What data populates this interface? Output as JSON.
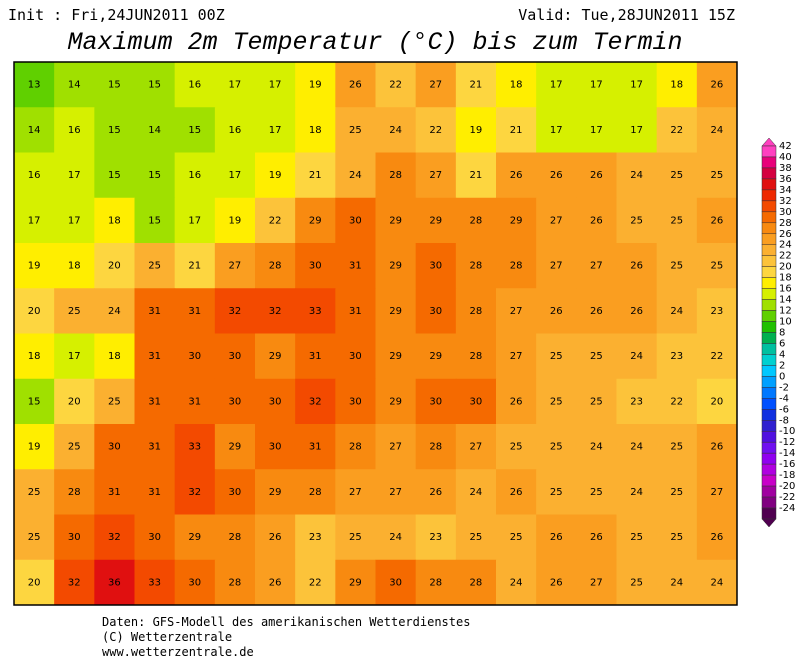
{
  "header": {
    "init": "Init : Fri,24JUN2011 00Z",
    "valid": "Valid: Tue,28JUN2011 15Z",
    "title": "Maximum 2m Temperatur (°C) bis zum Termin"
  },
  "map": {
    "values": [
      [
        13,
        14,
        15,
        15,
        16,
        17,
        17,
        19,
        26,
        22,
        27,
        21,
        18,
        17,
        17,
        17,
        18,
        26
      ],
      [
        14,
        16,
        15,
        14,
        15,
        16,
        17,
        18,
        25,
        24,
        22,
        19,
        21,
        17,
        17,
        17,
        22,
        24
      ],
      [
        16,
        17,
        15,
        15,
        16,
        17,
        19,
        21,
        24,
        28,
        27,
        21,
        26,
        26,
        26,
        24,
        25,
        25
      ],
      [
        17,
        17,
        18,
        15,
        17,
        19,
        22,
        29,
        30,
        29,
        29,
        28,
        29,
        27,
        26,
        25,
        25,
        26
      ],
      [
        19,
        18,
        20,
        25,
        21,
        27,
        28,
        30,
        31,
        29,
        30,
        28,
        28,
        27,
        27,
        26,
        25,
        25
      ],
      [
        20,
        25,
        24,
        31,
        31,
        32,
        32,
        33,
        31,
        29,
        30,
        28,
        27,
        26,
        26,
        26,
        24,
        23
      ],
      [
        18,
        17,
        18,
        31,
        30,
        30,
        29,
        31,
        30,
        29,
        29,
        28,
        27,
        25,
        25,
        24,
        23,
        22
      ],
      [
        15,
        20,
        25,
        31,
        31,
        30,
        30,
        32,
        30,
        29,
        30,
        30,
        26,
        25,
        25,
        23,
        22,
        20
      ],
      [
        19,
        25,
        30,
        31,
        33,
        29,
        30,
        31,
        28,
        27,
        28,
        27,
        25,
        25,
        24,
        24,
        25,
        26
      ],
      [
        25,
        28,
        31,
        31,
        32,
        30,
        29,
        28,
        27,
        27,
        26,
        24,
        26,
        25,
        25,
        24,
        25,
        27
      ],
      [
        25,
        30,
        32,
        30,
        29,
        28,
        26,
        23,
        25,
        24,
        23,
        25,
        25,
        26,
        26,
        25,
        25,
        26
      ],
      [
        20,
        32,
        36,
        33,
        30,
        28,
        26,
        22,
        29,
        30,
        28,
        28,
        24,
        26,
        27,
        25,
        24,
        24
      ]
    ]
  },
  "legend": {
    "levels": [
      42,
      40,
      38,
      36,
      34,
      32,
      30,
      28,
      26,
      24,
      22,
      20,
      18,
      16,
      14,
      12,
      10,
      8,
      6,
      4,
      2,
      0,
      -2,
      -4,
      -6,
      -8,
      -10,
      -12,
      -14,
      -16,
      -18,
      -20,
      -22,
      -24
    ],
    "colors": [
      "#ff40c0",
      "#e8007a",
      "#d40040",
      "#e01010",
      "#ee2800",
      "#f34a00",
      "#f56a00",
      "#f88a10",
      "#fa9e20",
      "#fbb030",
      "#fcc33a",
      "#fdd640",
      "#ffee00",
      "#d6f000",
      "#a0e000",
      "#60d000",
      "#20c000",
      "#00b050",
      "#00c0a0",
      "#00d0d0",
      "#00c8ff",
      "#00a0ff",
      "#0078ff",
      "#0050ff",
      "#1030e0",
      "#3020d0",
      "#5010e0",
      "#7010f0",
      "#9000f0",
      "#b000e0",
      "#c800c8",
      "#a000a0",
      "#800080",
      "#500050"
    ]
  },
  "footer": {
    "source": "Daten: GFS-Modell des amerikanischen Wetterdienstes",
    "copyright": "(C) Wetterzentrale",
    "url": "www.wetterzentrale.de"
  }
}
